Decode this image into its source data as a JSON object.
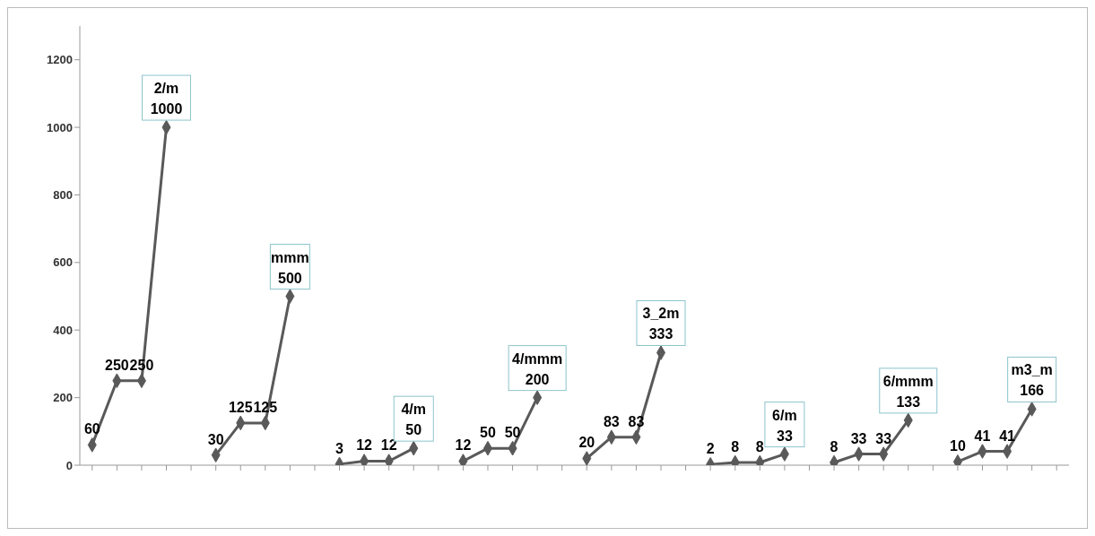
{
  "chart_data": {
    "type": "line",
    "categories": [
      null,
      null,
      null,
      null,
      null,
      null,
      null,
      null,
      null,
      null,
      null,
      null,
      null,
      null,
      null,
      null,
      null,
      null,
      null,
      null,
      null,
      null,
      null,
      null,
      null,
      null,
      null,
      null,
      null,
      null,
      null,
      null,
      null,
      null,
      null,
      null,
      null,
      null,
      null,
      null
    ],
    "series": [
      {
        "color": "#595959",
        "values": [
          60,
          250,
          250,
          1000,
          null,
          30,
          125,
          125,
          500,
          null,
          3,
          12,
          12,
          50,
          null,
          12,
          50,
          50,
          200,
          null,
          20,
          83,
          83,
          333,
          null,
          2,
          8,
          8,
          33,
          null,
          8,
          33,
          33,
          133,
          null,
          10,
          41,
          41,
          166,
          null
        ]
      }
    ],
    "ylim": [
      0,
      1300
    ],
    "yticks": [
      0,
      200,
      400,
      600,
      800,
      1000,
      1200
    ],
    "annotations": [
      "2/m",
      "mmm",
      "4/m",
      "4/mmm",
      "3_2m",
      "6/m",
      "6/mmm",
      "m3_m"
    ],
    "data_labels": true,
    "marker": "diamond",
    "grid": false,
    "legend": false
  }
}
